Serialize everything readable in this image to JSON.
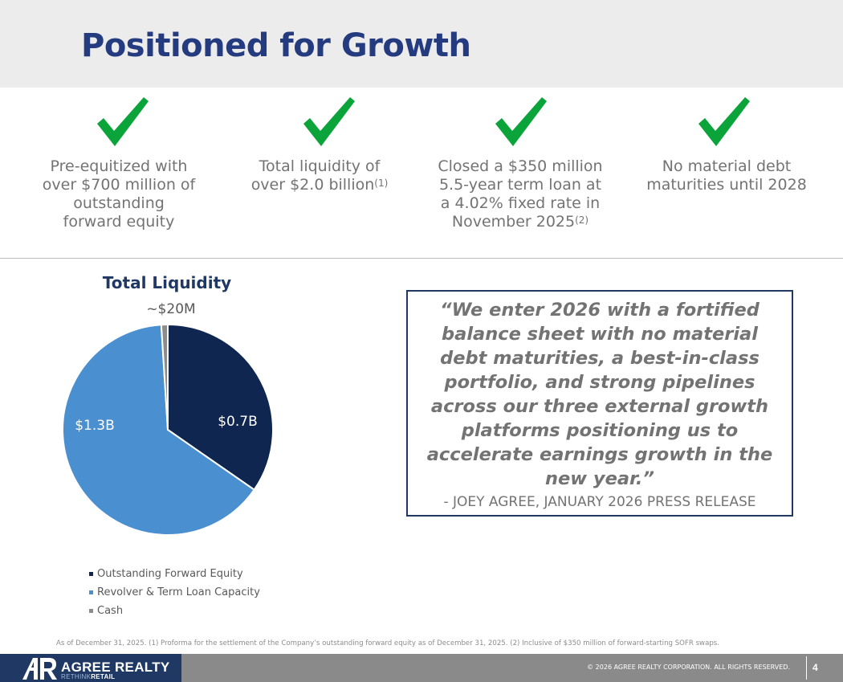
{
  "slide": {
    "title": "Positioned for Growth",
    "highlights": [
      {
        "icon": "checkmark-icon",
        "lines": [
          "Pre-equitized with",
          "over $700 million of",
          "outstanding",
          "forward equity"
        ]
      },
      {
        "icon": "checkmark-icon",
        "lines": [
          "Total liquidity of",
          "over $2.0 billion"
        ],
        "sup": "(1)"
      },
      {
        "icon": "checkmark-icon",
        "lines": [
          "Closed a $350 million",
          "5.5-year term loan at",
          "a 4.02% fixed rate in",
          "November 2025"
        ],
        "sup": "(2)"
      },
      {
        "icon": "checkmark-icon",
        "lines": [
          "No material debt",
          "maturities until 2028"
        ]
      }
    ],
    "quote": {
      "text": "“We enter 2026 with a fortified balance sheet with no material debt maturities, a best-in-class portfolio, and strong pipelines across our three external growth platforms positioning us to accelerate earnings growth in the new year.”",
      "attribution": "- JOEY AGREE, JANUARY 2026 PRESS RELEASE"
    },
    "footnote": "As of December 31, 2025. (1) Proforma for the settlement of the Company’s outstanding forward equity as of December 31, 2025. (2) Inclusive of $350 million of forward-starting SOFR swaps.",
    "footer": {
      "logo_name": "AGREE REALTY",
      "logo_tag_prefix": "RETHINK",
      "logo_tag_suffix": "RETAIL",
      "copyright": "© 2026 AGREE REALTY CORPORATION. ALL RIGHTS RESERVED.",
      "page_number": "4"
    },
    "colors": {
      "title": "#253b80",
      "check": "#0aa43a",
      "navy": "#1f3864",
      "text_gray": "#737373"
    }
  },
  "chart_data": {
    "type": "pie",
    "title": "Total Liquidity",
    "slices": [
      {
        "name": "Outstanding Forward Equity",
        "value": 0.7,
        "label": "$0.7B",
        "color": "#0f2650"
      },
      {
        "name": "Revolver & Term Loan Capacity",
        "value": 1.3,
        "label": "$1.3B",
        "color": "#4a8fd0"
      },
      {
        "name": "Cash",
        "value": 0.02,
        "label": "~$20M",
        "color": "#8c8c8c"
      }
    ],
    "legend_position": "bottom"
  }
}
